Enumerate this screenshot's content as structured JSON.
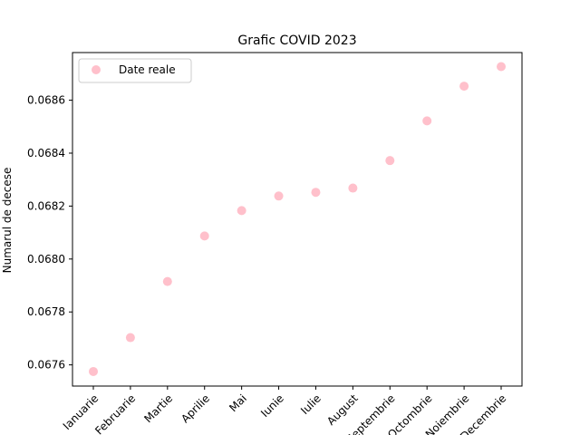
{
  "chart_data": {
    "type": "scatter",
    "title": "Grafic COVID 2023",
    "xlabel": "",
    "ylabel": "Numarul de decese",
    "categories": [
      "Ianuarie",
      "Februarie",
      "Martie",
      "Aprilie",
      "Mai",
      "Iunie",
      "Iulie",
      "August",
      "Septembrie",
      "Octombrie",
      "Noiembrie",
      "Decembrie"
    ],
    "series": [
      {
        "name": "Date reale",
        "color": "#ffc0cb",
        "values": [
          0.067575,
          0.067703,
          0.067915,
          0.068087,
          0.068183,
          0.068238,
          0.068252,
          0.068268,
          0.068372,
          0.068522,
          0.068653,
          0.068727
        ]
      }
    ],
    "ylim": [
      0.06752,
      0.06878
    ],
    "yticks": [
      "0.0676",
      "0.0678",
      "0.0680",
      "0.0682",
      "0.0684",
      "0.0686"
    ],
    "grid": false,
    "legend_position": "top-left"
  }
}
